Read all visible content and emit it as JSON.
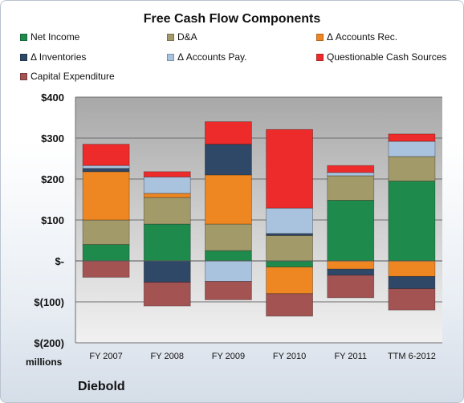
{
  "chart_data": {
    "type": "bar",
    "stacked": true,
    "title": "Free Cash Flow Components",
    "categories": [
      "FY 2007",
      "FY 2008",
      "FY 2009",
      "FY 2010",
      "FY 2011",
      "TTM 6-2012"
    ],
    "series": [
      {
        "name": "Net Income",
        "color": "#1e8a4c",
        "values": [
          40,
          90,
          25,
          -15,
          148,
          195
        ]
      },
      {
        "name": "D&A",
        "color": "#a39a6a",
        "values": [
          60,
          65,
          65,
          62,
          60,
          60
        ]
      },
      {
        "name": "Δ Accounts Rec.",
        "color": "#ee8722",
        "values": [
          118,
          10,
          120,
          -65,
          -20,
          -38
        ]
      },
      {
        "name": "Δ Inventories",
        "color": "#2f4868",
        "values": [
          8,
          -52,
          75,
          5,
          -15,
          -30
        ]
      },
      {
        "name": "Δ Accounts Pay.",
        "color": "#a9c3df",
        "values": [
          7,
          40,
          -50,
          62,
          8,
          37
        ]
      },
      {
        "name": "Questionable Cash Sources",
        "color": "#ee2b2b",
        "values": [
          52,
          13,
          55,
          192,
          17,
          18
        ]
      },
      {
        "name": "Capital Expenditure",
        "color": "#a45353",
        "values": [
          -40,
          -58,
          -45,
          -55,
          -55,
          -52
        ]
      }
    ],
    "ylim": [
      -200,
      400
    ],
    "yticks": [
      400,
      300,
      200,
      100,
      0,
      -100,
      -200
    ],
    "ytick_labels": [
      "$400",
      "$300",
      "$200",
      "$100",
      "$-",
      "$(100)",
      "$(200)"
    ],
    "ylabel": "millions",
    "legend": "top",
    "grid": true
  },
  "footer": {
    "company": "Diebold"
  }
}
